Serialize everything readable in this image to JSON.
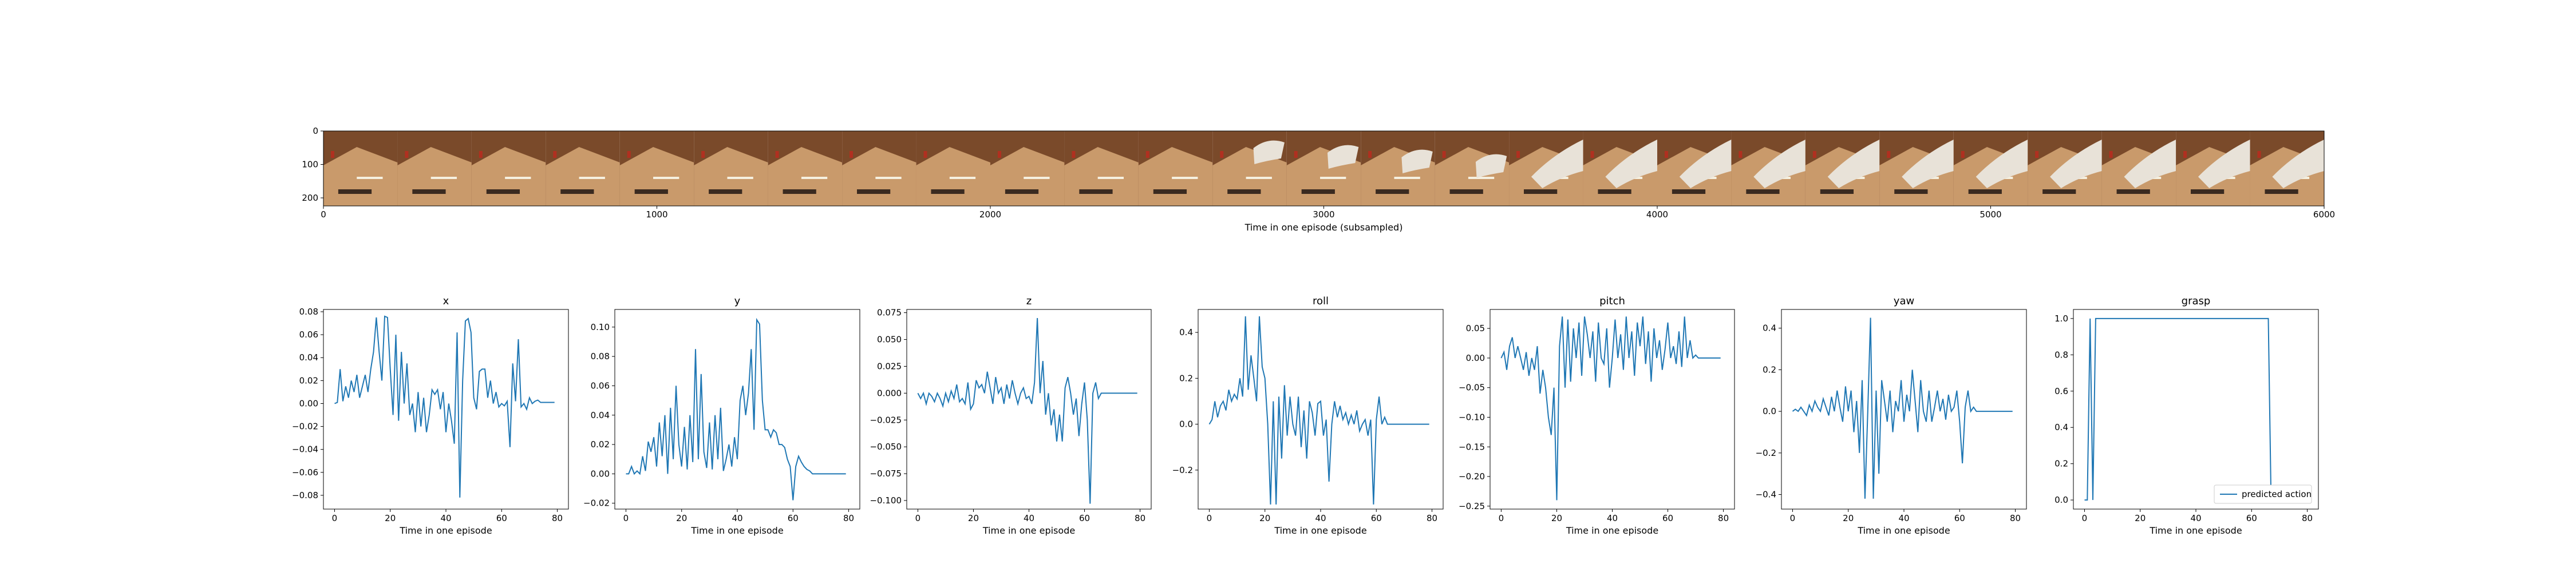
{
  "colors": {
    "line": "#1f77b4",
    "axis": "#000000",
    "image_bg": "#7a4a2a",
    "image_floor": "#c99a6b"
  },
  "chart_data": [
    {
      "type": "image_strip",
      "xlabel": "Time in one episode (subsampled)",
      "xlim": [
        0,
        6000
      ],
      "ylim": [
        0,
        224
      ],
      "xticks": [
        0,
        1000,
        2000,
        3000,
        4000,
        5000,
        6000
      ],
      "xtick_labels": [
        "0",
        "1000",
        "2000",
        "3000",
        "4000",
        "5000",
        "6000"
      ],
      "yticks": [
        0,
        100,
        200
      ],
      "ytick_labels": [
        "0",
        "100",
        "200"
      ],
      "frames": 27
    },
    {
      "type": "line",
      "title": "x",
      "xlabel": "Time in one episode",
      "xlim": [
        -4,
        84
      ],
      "ylim": [
        -0.092,
        0.082
      ],
      "xticks": [
        0,
        20,
        40,
        60,
        80
      ],
      "xtick_labels": [
        "0",
        "20",
        "40",
        "60",
        "80"
      ],
      "yticks": [
        -0.08,
        -0.06,
        -0.04,
        -0.02,
        0.0,
        0.02,
        0.04,
        0.06,
        0.08
      ],
      "ytick_labels": [
        "−0.08",
        "−0.06",
        "−0.04",
        "−0.02",
        "0.00",
        "0.02",
        "0.04",
        "0.06",
        "0.08"
      ],
      "x": [
        0,
        1,
        2,
        3,
        4,
        5,
        6,
        7,
        8,
        9,
        10,
        11,
        12,
        13,
        14,
        15,
        16,
        17,
        18,
        19,
        20,
        21,
        22,
        23,
        24,
        25,
        26,
        27,
        28,
        29,
        30,
        31,
        32,
        33,
        34,
        35,
        36,
        37,
        38,
        39,
        40,
        41,
        42,
        43,
        44,
        45,
        46,
        47,
        48,
        49,
        50,
        51,
        52,
        53,
        54,
        55,
        56,
        57,
        58,
        59,
        60,
        61,
        62,
        63,
        64,
        65,
        66,
        67,
        68,
        69,
        70,
        71,
        72,
        73,
        74,
        75,
        76,
        77,
        78,
        79
      ],
      "y": [
        0.0,
        0.001,
        0.03,
        0.002,
        0.015,
        0.005,
        0.02,
        0.01,
        0.025,
        0.005,
        0.015,
        0.025,
        0.01,
        0.03,
        0.045,
        0.075,
        0.045,
        0.02,
        0.076,
        0.075,
        0.03,
        -0.01,
        0.06,
        -0.015,
        0.045,
        0.0,
        0.035,
        -0.01,
        0.0,
        -0.025,
        0.01,
        -0.02,
        0.005,
        -0.025,
        -0.01,
        0.012,
        0.008,
        0.012,
        -0.005,
        0.01,
        -0.025,
        0.0,
        -0.015,
        -0.035,
        0.062,
        -0.082,
        0.02,
        0.072,
        0.074,
        0.062,
        0.005,
        -0.005,
        0.028,
        0.03,
        0.03,
        0.005,
        0.02,
        0.0,
        0.01,
        -0.003,
        0.0,
        -0.002,
        0.002,
        -0.038,
        0.035,
        0.002,
        0.056,
        -0.003,
        0.0,
        -0.005,
        0.005,
        0.0,
        0.002,
        0.003,
        0.001,
        0.001,
        0.001,
        0.001,
        0.001,
        0.001
      ]
    },
    {
      "type": "line",
      "title": "y",
      "xlabel": "Time in one episode",
      "xlim": [
        -4,
        84
      ],
      "ylim": [
        -0.024,
        0.112
      ],
      "xticks": [
        0,
        20,
        40,
        60,
        80
      ],
      "xtick_labels": [
        "0",
        "20",
        "40",
        "60",
        "80"
      ],
      "yticks": [
        -0.02,
        0.0,
        0.02,
        0.04,
        0.06,
        0.08,
        0.1
      ],
      "ytick_labels": [
        "−0.02",
        "0.00",
        "0.02",
        "0.04",
        "0.06",
        "0.08",
        "0.10"
      ],
      "x": [
        0,
        1,
        2,
        3,
        4,
        5,
        6,
        7,
        8,
        9,
        10,
        11,
        12,
        13,
        14,
        15,
        16,
        17,
        18,
        19,
        20,
        21,
        22,
        23,
        24,
        25,
        26,
        27,
        28,
        29,
        30,
        31,
        32,
        33,
        34,
        35,
        36,
        37,
        38,
        39,
        40,
        41,
        42,
        43,
        44,
        45,
        46,
        47,
        48,
        49,
        50,
        51,
        52,
        53,
        54,
        55,
        56,
        57,
        58,
        59,
        60,
        61,
        62,
        63,
        64,
        65,
        66,
        67,
        68,
        69,
        70,
        71,
        72,
        73,
        74,
        75,
        76,
        77,
        78,
        79
      ],
      "y": [
        0.0,
        0.0,
        0.005,
        0.0,
        0.002,
        0.0,
        0.012,
        0.002,
        0.022,
        0.015,
        0.025,
        0.005,
        0.035,
        0.012,
        0.04,
        0.0,
        0.045,
        0.01,
        0.06,
        0.02,
        0.005,
        0.032,
        0.003,
        0.04,
        0.008,
        0.085,
        0.01,
        0.068,
        0.015,
        0.004,
        0.035,
        0.003,
        0.04,
        0.01,
        0.045,
        0.002,
        0.01,
        0.02,
        0.005,
        0.025,
        0.01,
        0.05,
        0.06,
        0.04,
        0.055,
        0.085,
        0.03,
        0.105,
        0.102,
        0.05,
        0.03,
        0.03,
        0.025,
        0.03,
        0.028,
        0.02,
        0.02,
        0.018,
        0.01,
        0.005,
        -0.018,
        0.005,
        0.012,
        0.008,
        0.005,
        0.003,
        0.002,
        0.0,
        0.0,
        0.0,
        0.0,
        0.0,
        0.0,
        0.0,
        0.0,
        0.0,
        0.0,
        0.0,
        0.0,
        0.0
      ]
    },
    {
      "type": "line",
      "title": "z",
      "xlabel": "Time in one episode",
      "xlim": [
        -4,
        84
      ],
      "ylim": [
        -0.108,
        0.078
      ],
      "xticks": [
        0,
        20,
        40,
        60,
        80
      ],
      "xtick_labels": [
        "0",
        "20",
        "40",
        "60",
        "80"
      ],
      "yticks": [
        -0.1,
        -0.075,
        -0.05,
        -0.025,
        0.0,
        0.025,
        0.05,
        0.075
      ],
      "ytick_labels": [
        "−0.100",
        "−0.075",
        "−0.050",
        "−0.025",
        "0.000",
        "0.025",
        "0.050",
        "0.075"
      ],
      "x": [
        0,
        1,
        2,
        3,
        4,
        5,
        6,
        7,
        8,
        9,
        10,
        11,
        12,
        13,
        14,
        15,
        16,
        17,
        18,
        19,
        20,
        21,
        22,
        23,
        24,
        25,
        26,
        27,
        28,
        29,
        30,
        31,
        32,
        33,
        34,
        35,
        36,
        37,
        38,
        39,
        40,
        41,
        42,
        43,
        44,
        45,
        46,
        47,
        48,
        49,
        50,
        51,
        52,
        53,
        54,
        55,
        56,
        57,
        58,
        59,
        60,
        61,
        62,
        63,
        64,
        65,
        66,
        67,
        68,
        69,
        70,
        71,
        72,
        73,
        74,
        75,
        76,
        77,
        78,
        79
      ],
      "y": [
        0.0,
        -0.005,
        0.0,
        -0.01,
        0.0,
        -0.003,
        -0.008,
        0.0,
        -0.005,
        -0.012,
        0.0,
        -0.008,
        0.002,
        -0.005,
        0.008,
        -0.008,
        -0.005,
        -0.01,
        0.01,
        -0.015,
        -0.01,
        0.012,
        0.005,
        0.008,
        0.0,
        0.02,
        0.005,
        -0.01,
        0.015,
        0.0,
        0.005,
        -0.01,
        0.008,
        -0.005,
        0.012,
        0.0,
        -0.01,
        0.0,
        0.005,
        -0.005,
        -0.003,
        -0.01,
        0.01,
        0.07,
        0.0,
        0.03,
        -0.02,
        0.0,
        -0.03,
        -0.015,
        -0.045,
        -0.02,
        -0.045,
        0.005,
        0.015,
        0.0,
        -0.02,
        -0.005,
        -0.04,
        -0.01,
        0.01,
        -0.025,
        -0.103,
        0.0,
        0.01,
        -0.005,
        0.0,
        0.0,
        0.0,
        0.0,
        0.0,
        0.0,
        0.0,
        0.0,
        0.0,
        0.0,
        0.0,
        0.0,
        0.0,
        0.0
      ]
    },
    {
      "type": "line",
      "title": "roll",
      "xlabel": "Time in one episode",
      "xlim": [
        -4,
        84
      ],
      "ylim": [
        -0.37,
        0.5
      ],
      "xticks": [
        0,
        20,
        40,
        60,
        80
      ],
      "xtick_labels": [
        "0",
        "20",
        "40",
        "60",
        "80"
      ],
      "yticks": [
        -0.2,
        0.0,
        0.2,
        0.4
      ],
      "ytick_labels": [
        "−0.2",
        "0.0",
        "0.2",
        "0.4"
      ],
      "x": [
        0,
        1,
        2,
        3,
        4,
        5,
        6,
        7,
        8,
        9,
        10,
        11,
        12,
        13,
        14,
        15,
        16,
        17,
        18,
        19,
        20,
        21,
        22,
        23,
        24,
        25,
        26,
        27,
        28,
        29,
        30,
        31,
        32,
        33,
        34,
        35,
        36,
        37,
        38,
        39,
        40,
        41,
        42,
        43,
        44,
        45,
        46,
        47,
        48,
        49,
        50,
        51,
        52,
        53,
        54,
        55,
        56,
        57,
        58,
        59,
        60,
        61,
        62,
        63,
        64,
        65,
        66,
        67,
        68,
        69,
        70,
        71,
        72,
        73,
        74,
        75,
        76,
        77,
        78,
        79
      ],
      "y": [
        0.0,
        0.02,
        0.1,
        0.03,
        0.08,
        0.1,
        0.06,
        0.15,
        0.1,
        0.13,
        0.11,
        0.2,
        0.12,
        0.47,
        0.15,
        0.3,
        0.2,
        0.1,
        0.47,
        0.25,
        0.2,
        0.0,
        -0.35,
        0.1,
        -0.35,
        0.12,
        -0.15,
        0.17,
        -0.05,
        0.12,
        0.0,
        -0.05,
        0.12,
        -0.1,
        0.06,
        -0.15,
        0.1,
        0.05,
        -0.05,
        0.09,
        0.1,
        -0.05,
        0.02,
        -0.25,
        0.0,
        0.1,
        0.03,
        0.08,
        0.02,
        0.05,
        0.0,
        0.04,
        0.0,
        0.06,
        -0.03,
        0.0,
        0.02,
        -0.05,
        0.02,
        -0.35,
        0.02,
        0.12,
        0.0,
        0.03,
        0.0,
        0.0,
        0.0,
        0.0,
        0.0,
        0.0,
        0.0,
        0.0,
        0.0,
        0.0,
        0.0,
        0.0,
        0.0,
        0.0,
        0.0,
        0.0
      ]
    },
    {
      "type": "line",
      "title": "pitch",
      "xlabel": "Time in one episode",
      "xlim": [
        -4,
        84
      ],
      "ylim": [
        -0.255,
        0.082
      ],
      "xticks": [
        0,
        20,
        40,
        60,
        80
      ],
      "xtick_labels": [
        "0",
        "20",
        "40",
        "60",
        "80"
      ],
      "yticks": [
        -0.25,
        -0.2,
        -0.15,
        -0.1,
        -0.05,
        0.0,
        0.05
      ],
      "ytick_labels": [
        "−0.25",
        "−0.20",
        "−0.15",
        "−0.10",
        "−0.05",
        "0.00",
        "0.05"
      ],
      "x": [
        0,
        1,
        2,
        3,
        4,
        5,
        6,
        7,
        8,
        9,
        10,
        11,
        12,
        13,
        14,
        15,
        16,
        17,
        18,
        19,
        20,
        21,
        22,
        23,
        24,
        25,
        26,
        27,
        28,
        29,
        30,
        31,
        32,
        33,
        34,
        35,
        36,
        37,
        38,
        39,
        40,
        41,
        42,
        43,
        44,
        45,
        46,
        47,
        48,
        49,
        50,
        51,
        52,
        53,
        54,
        55,
        56,
        57,
        58,
        59,
        60,
        61,
        62,
        63,
        64,
        65,
        66,
        67,
        68,
        69,
        70,
        71,
        72,
        73,
        74,
        75,
        76,
        77,
        78,
        79
      ],
      "y": [
        0.0,
        0.01,
        -0.02,
        0.02,
        0.035,
        0.0,
        0.02,
        0.0,
        -0.02,
        0.01,
        -0.03,
        0.0,
        -0.02,
        0.02,
        -0.06,
        -0.02,
        -0.05,
        -0.1,
        -0.13,
        -0.05,
        -0.24,
        0.02,
        0.07,
        -0.05,
        0.065,
        -0.04,
        0.05,
        0.0,
        0.06,
        -0.03,
        0.07,
        0.04,
        0.0,
        0.045,
        -0.04,
        0.06,
        0.0,
        -0.01,
        0.05,
        -0.05,
        0.0,
        0.065,
        0.0,
        0.04,
        -0.02,
        0.07,
        0.0,
        0.045,
        -0.03,
        0.06,
        0.02,
        0.07,
        -0.01,
        0.045,
        -0.04,
        0.05,
        0.0,
        0.03,
        -0.02,
        0.015,
        0.06,
        0.0,
        0.02,
        -0.01,
        0.045,
        -0.015,
        0.07,
        0.0,
        0.03,
        0.0,
        0.005,
        0.0,
        0.0,
        0.0,
        0.0,
        0.0,
        0.0,
        0.0,
        0.0,
        0.0
      ]
    },
    {
      "type": "line",
      "title": "yaw",
      "xlabel": "Time in one episode",
      "xlim": [
        -4,
        84
      ],
      "ylim": [
        -0.47,
        0.49
      ],
      "xticks": [
        0,
        20,
        40,
        60,
        80
      ],
      "xtick_labels": [
        "0",
        "20",
        "40",
        "60",
        "80"
      ],
      "yticks": [
        -0.4,
        -0.2,
        0.0,
        0.2,
        0.4
      ],
      "ytick_labels": [
        "−0.4",
        "−0.2",
        "0.0",
        "0.2",
        "0.4"
      ],
      "x": [
        0,
        1,
        2,
        3,
        4,
        5,
        6,
        7,
        8,
        9,
        10,
        11,
        12,
        13,
        14,
        15,
        16,
        17,
        18,
        19,
        20,
        21,
        22,
        23,
        24,
        25,
        26,
        27,
        28,
        29,
        30,
        31,
        32,
        33,
        34,
        35,
        36,
        37,
        38,
        39,
        40,
        41,
        42,
        43,
        44,
        45,
        46,
        47,
        48,
        49,
        50,
        51,
        52,
        53,
        54,
        55,
        56,
        57,
        58,
        59,
        60,
        61,
        62,
        63,
        64,
        65,
        66,
        67,
        68,
        69,
        70,
        71,
        72,
        73,
        74,
        75,
        76,
        77,
        78,
        79
      ],
      "y": [
        0.0,
        0.01,
        0.0,
        0.02,
        0.0,
        -0.02,
        0.03,
        0.0,
        0.05,
        0.02,
        0.0,
        0.06,
        0.02,
        -0.02,
        0.07,
        0.0,
        0.1,
        0.02,
        -0.05,
        0.12,
        0.0,
        0.1,
        -0.1,
        0.05,
        -0.2,
        0.15,
        -0.42,
        0.0,
        0.45,
        -0.42,
        0.1,
        -0.3,
        0.15,
        0.05,
        -0.05,
        0.1,
        -0.1,
        0.05,
        0.0,
        0.15,
        -0.05,
        0.08,
        0.0,
        0.2,
        0.05,
        -0.1,
        0.15,
        0.0,
        -0.05,
        0.1,
        -0.05,
        0.02,
        0.1,
        0.0,
        0.06,
        -0.04,
        0.08,
        0.0,
        0.02,
        0.1,
        -0.05,
        -0.25,
        0.02,
        0.1,
        0.0,
        0.02,
        0.0,
        0.0,
        0.0,
        0.0,
        0.0,
        0.0,
        0.0,
        0.0,
        0.0,
        0.0,
        0.0,
        0.0,
        0.0,
        0.0
      ]
    },
    {
      "type": "line",
      "title": "grasp",
      "xlabel": "Time in one episode",
      "xlim": [
        -4,
        84
      ],
      "ylim": [
        -0.05,
        1.05
      ],
      "xticks": [
        0,
        20,
        40,
        60,
        80
      ],
      "xtick_labels": [
        "0",
        "20",
        "40",
        "60",
        "80"
      ],
      "yticks": [
        0.0,
        0.2,
        0.4,
        0.6,
        0.8,
        1.0
      ],
      "ytick_labels": [
        "0.0",
        "0.2",
        "0.4",
        "0.6",
        "0.8",
        "1.0"
      ],
      "legend": [
        "predicted action"
      ],
      "legend_loc": "lower right",
      "x": [
        0,
        1,
        2,
        3,
        4,
        5,
        6,
        7,
        8,
        9,
        10,
        11,
        12,
        13,
        14,
        15,
        16,
        17,
        18,
        19,
        20,
        21,
        22,
        23,
        24,
        25,
        26,
        27,
        28,
        29,
        30,
        31,
        32,
        33,
        34,
        35,
        36,
        37,
        38,
        39,
        40,
        41,
        42,
        43,
        44,
        45,
        46,
        47,
        48,
        49,
        50,
        51,
        52,
        53,
        54,
        55,
        56,
        57,
        58,
        59,
        60,
        61,
        62,
        63,
        64,
        65,
        66,
        67,
        68,
        69,
        70,
        71,
        72,
        73,
        74,
        75,
        76,
        77,
        78,
        79
      ],
      "y": [
        0,
        0,
        1,
        0,
        1,
        1,
        1,
        1,
        1,
        1,
        1,
        1,
        1,
        1,
        1,
        1,
        1,
        1,
        1,
        1,
        1,
        1,
        1,
        1,
        1,
        1,
        1,
        1,
        1,
        1,
        1,
        1,
        1,
        1,
        1,
        1,
        1,
        1,
        1,
        1,
        1,
        1,
        1,
        1,
        1,
        1,
        1,
        1,
        1,
        1,
        1,
        1,
        1,
        1,
        1,
        1,
        1,
        1,
        1,
        1,
        1,
        1,
        1,
        1,
        1,
        1,
        1,
        0,
        0,
        0,
        0,
        0,
        0,
        0,
        0,
        0,
        0,
        0,
        0,
        0
      ]
    }
  ]
}
